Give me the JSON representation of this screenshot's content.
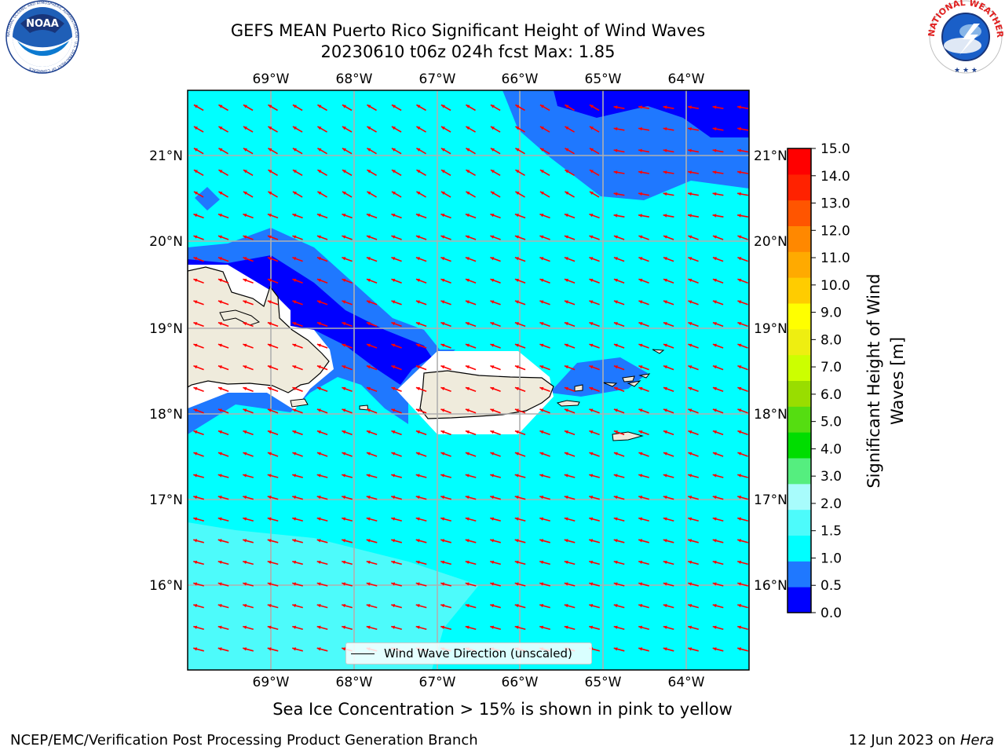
{
  "title": {
    "line1": "GEFS MEAN Puerto Rico Significant Height of Wind Waves",
    "line2": "20230610 t06z 024h fcst   Max: 1.85"
  },
  "map": {
    "lon_labels": [
      "69°W",
      "68°W",
      "67°W",
      "66°W",
      "65°W",
      "64°W"
    ],
    "lat_labels": [
      "21°N",
      "20°N",
      "19°N",
      "18°N",
      "17°N",
      "16°N"
    ],
    "land_color": "#efebdc",
    "arrow_color": "#ff0000",
    "wave_direction": "west-northwest"
  },
  "legend": {
    "label": "Wind Wave Direction (unscaled)"
  },
  "colorbar": {
    "title_line1": "Significant Height of Wind",
    "title_line2": "Waves [m]",
    "ticks": [
      "0.0",
      "0.5",
      "1.0",
      "1.5",
      "2.0",
      "3.0",
      "4.0",
      "5.0",
      "6.0",
      "7.0",
      "8.0",
      "9.0",
      "10.0",
      "11.0",
      "12.0",
      "13.0",
      "14.0",
      "15.0"
    ],
    "colors": [
      "#0000ff",
      "#1f78ff",
      "#00ffff",
      "#4dfbfb",
      "#a8fcfc",
      "#55ee7f",
      "#00dd00",
      "#55dd11",
      "#99dd00",
      "#ccff00",
      "#eeee11",
      "#ffff00",
      "#ffcc00",
      "#ffaa00",
      "#ff8800",
      "#ff5500",
      "#ff2200",
      "#ff0000"
    ]
  },
  "note": "Sea Ice Concentration > 15% is shown in pink to yellow",
  "footer": {
    "left": "NCEP/EMC/Verification Post Processing Product Generation Branch",
    "date": "12 Jun 2023 on",
    "host": "Hera"
  },
  "logos": {
    "noaa": "NOAA",
    "noaa_ring": "NATIONAL OCEANIC AND ATMOSPHERIC ADMINISTRATION · U.S. DEPARTMENT OF COMMERCE",
    "nws_ring": "NATIONAL WEATHER SERVICE"
  }
}
